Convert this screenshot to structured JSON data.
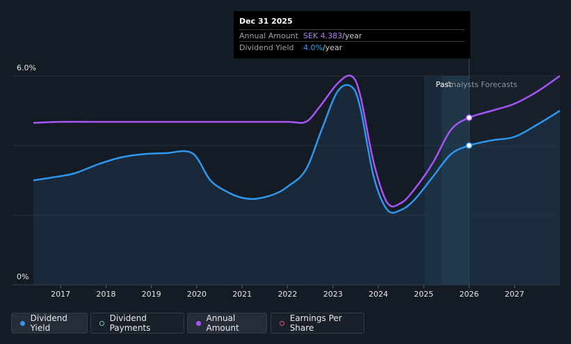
{
  "tooltip": {
    "date": "Dec 31 2025",
    "rows": [
      {
        "label": "Annual Amount",
        "value_main": "SEK 4.383",
        "value_suffix": "/year",
        "color": "#b67bf5"
      },
      {
        "label": "Dividend Yield",
        "value_main": "4.0%",
        "value_suffix": "/year",
        "color": "#39a0ef"
      }
    ]
  },
  "legend": [
    {
      "label": "Dividend Yield",
      "color": "#2d98ef",
      "filled": true,
      "active": true
    },
    {
      "label": "Dividend Payments",
      "color": "#5fd3c0",
      "filled": false,
      "active": false
    },
    {
      "label": "Annual Amount",
      "color": "#a855f7",
      "filled": true,
      "active": true
    },
    {
      "label": "Earnings Per Share",
      "color": "#d9537e",
      "filled": false,
      "active": false
    }
  ],
  "chart_data": {
    "type": "area",
    "y_tick_labels": [
      "6.0%",
      "0%"
    ],
    "ylim": [
      0,
      6
    ],
    "x_tick_labels": [
      "2017",
      "2018",
      "2019",
      "2020",
      "2021",
      "2022",
      "2023",
      "2024",
      "2025",
      "2026",
      "2027"
    ],
    "xlim": [
      2016.4,
      2028.0
    ],
    "region_labels": {
      "past": "Past",
      "forecast": "Analysts Forecasts"
    },
    "past_end": 2026.0,
    "series": [
      {
        "name": "Dividend Yield",
        "color": "#2d98ef",
        "points": [
          [
            2016.4,
            3.0
          ],
          [
            2016.8,
            3.08
          ],
          [
            2017.3,
            3.2
          ],
          [
            2017.8,
            3.45
          ],
          [
            2018.3,
            3.65
          ],
          [
            2018.8,
            3.75
          ],
          [
            2019.3,
            3.78
          ],
          [
            2019.9,
            3.78
          ],
          [
            2020.3,
            3.0
          ],
          [
            2020.7,
            2.65
          ],
          [
            2021.0,
            2.5
          ],
          [
            2021.3,
            2.47
          ],
          [
            2021.7,
            2.6
          ],
          [
            2022.0,
            2.82
          ],
          [
            2022.4,
            3.3
          ],
          [
            2022.75,
            4.45
          ],
          [
            2023.1,
            5.55
          ],
          [
            2023.4,
            5.7
          ],
          [
            2023.6,
            5.1
          ],
          [
            2023.9,
            3.1
          ],
          [
            2024.2,
            2.15
          ],
          [
            2024.5,
            2.15
          ],
          [
            2024.8,
            2.45
          ],
          [
            2025.2,
            3.1
          ],
          [
            2025.6,
            3.75
          ],
          [
            2026.0,
            4.0
          ],
          [
            2026.5,
            4.15
          ],
          [
            2027.0,
            4.25
          ],
          [
            2027.5,
            4.6
          ],
          [
            2028.0,
            5.0
          ]
        ]
      },
      {
        "name": "Annual Amount",
        "color": "#a855f7",
        "points": [
          [
            2016.4,
            4.65
          ],
          [
            2017.0,
            4.68
          ],
          [
            2018.0,
            4.68
          ],
          [
            2019.0,
            4.68
          ],
          [
            2020.0,
            4.68
          ],
          [
            2021.0,
            4.68
          ],
          [
            2022.0,
            4.68
          ],
          [
            2022.4,
            4.68
          ],
          [
            2022.7,
            5.1
          ],
          [
            2023.1,
            5.78
          ],
          [
            2023.4,
            6.0
          ],
          [
            2023.6,
            5.45
          ],
          [
            2023.9,
            3.5
          ],
          [
            2024.2,
            2.35
          ],
          [
            2024.5,
            2.35
          ],
          [
            2024.8,
            2.75
          ],
          [
            2025.2,
            3.5
          ],
          [
            2025.6,
            4.45
          ],
          [
            2026.0,
            4.8
          ],
          [
            2026.5,
            5.0
          ],
          [
            2027.0,
            5.2
          ],
          [
            2027.5,
            5.55
          ],
          [
            2028.0,
            6.0
          ]
        ]
      }
    ]
  }
}
